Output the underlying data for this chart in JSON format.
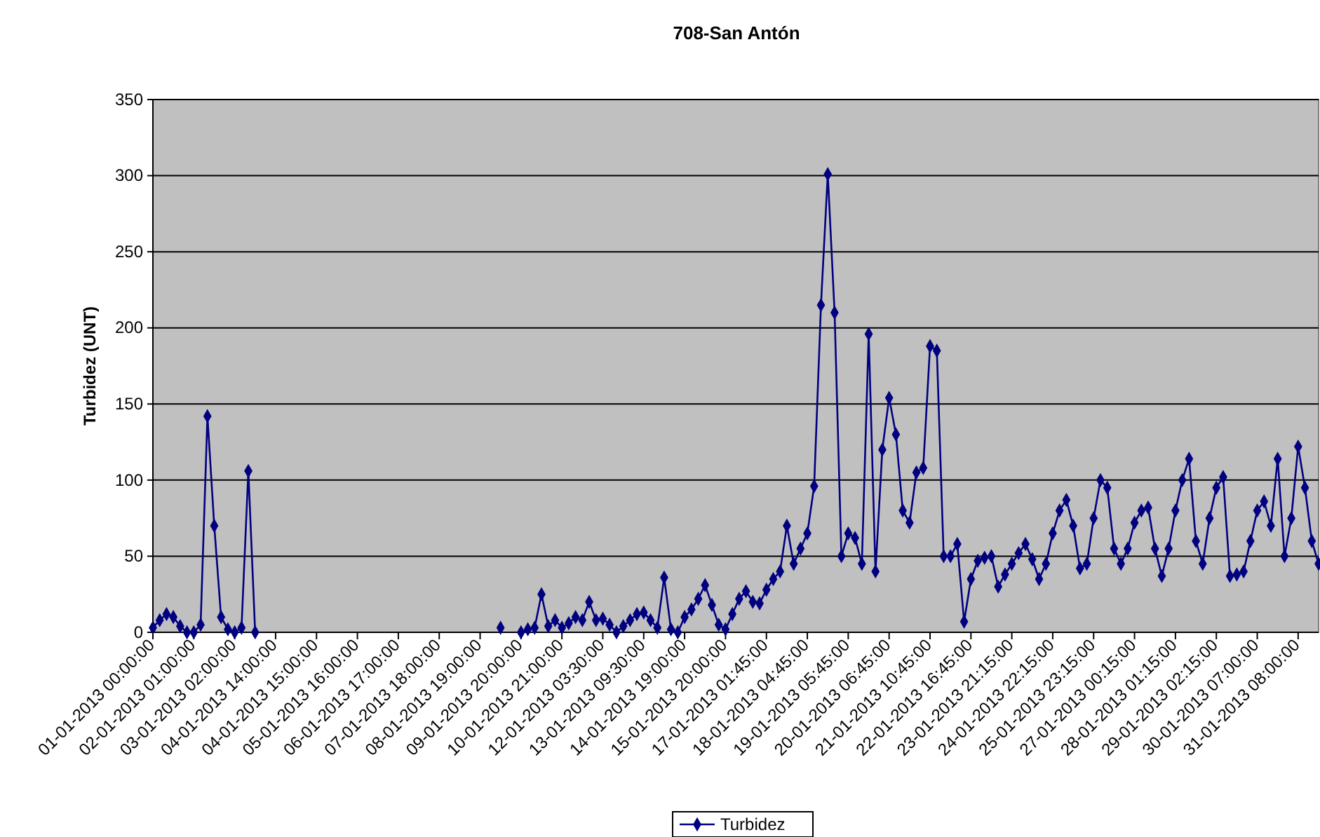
{
  "chart_data": {
    "type": "line",
    "title": "708-San Antón",
    "ylabel": "Turbidez (UNT)",
    "categories": [
      "01-01-2013 00:00:00",
      null,
      null,
      null,
      null,
      null,
      "02-01-2013 01:00:00",
      null,
      null,
      null,
      null,
      null,
      "03-01-2013 02:00:00",
      null,
      null,
      null,
      null,
      null,
      "04-01-2013 14:00:00",
      null,
      null,
      null,
      null,
      null,
      "04-01-2013 15:00:00",
      null,
      null,
      null,
      null,
      null,
      "05-01-2013 16:00:00",
      null,
      null,
      null,
      null,
      null,
      "06-01-2013 17:00:00",
      null,
      null,
      null,
      null,
      null,
      "07-01-2013 18:00:00",
      null,
      null,
      null,
      null,
      null,
      "08-01-2013 19:00:00",
      null,
      null,
      null,
      null,
      null,
      "09-01-2013 20:00:00",
      null,
      null,
      null,
      null,
      null,
      "10-01-2013 21:00:00",
      null,
      null,
      null,
      null,
      null,
      "12-01-2013 03:30:00",
      null,
      null,
      null,
      null,
      null,
      "13-01-2013 09:30:00",
      null,
      null,
      null,
      null,
      null,
      "14-01-2013 19:00:00",
      null,
      null,
      null,
      null,
      null,
      "15-01-2013 20:00:00",
      null,
      null,
      null,
      null,
      null,
      "17-01-2013 01:45:00",
      null,
      null,
      null,
      null,
      null,
      "18-01-2013 04:45:00",
      null,
      null,
      null,
      null,
      null,
      "19-01-2013 05:45:00",
      null,
      null,
      null,
      null,
      null,
      "20-01-2013 06:45:00",
      null,
      null,
      null,
      null,
      null,
      "21-01-2013 10:45:00",
      null,
      null,
      null,
      null,
      null,
      "22-01-2013 16:45:00",
      null,
      null,
      null,
      null,
      null,
      "23-01-2013 21:15:00",
      null,
      null,
      null,
      null,
      null,
      "24-01-2013 22:15:00",
      null,
      null,
      null,
      null,
      null,
      "25-01-2013 23:15:00",
      null,
      null,
      null,
      null,
      null,
      "27-01-2013 00:15:00",
      null,
      null,
      null,
      null,
      null,
      "28-01-2013 01:15:00",
      null,
      null,
      null,
      null,
      null,
      "29-01-2013 02:15:00",
      null,
      null,
      null,
      null,
      null,
      "30-01-2013 07:00:00",
      null,
      null,
      null,
      null,
      null,
      "31-01-2013 08:00:00",
      null,
      null,
      null
    ],
    "series": [
      {
        "name": "Turbidez",
        "color": "#000080",
        "values": [
          3,
          8,
          12,
          10,
          4,
          0,
          0,
          5,
          142,
          70,
          10,
          2,
          0,
          3,
          106,
          0,
          null,
          null,
          null,
          null,
          null,
          null,
          null,
          null,
          null,
          null,
          null,
          null,
          null,
          null,
          null,
          null,
          null,
          null,
          null,
          null,
          null,
          null,
          null,
          null,
          null,
          null,
          null,
          null,
          null,
          null,
          null,
          null,
          null,
          null,
          null,
          3,
          null,
          null,
          0,
          2,
          3,
          25,
          4,
          8,
          3,
          6,
          10,
          8,
          20,
          8,
          9,
          5,
          0,
          4,
          8,
          12,
          13,
          8,
          3,
          36,
          2,
          0,
          10,
          15,
          22,
          31,
          18,
          5,
          2,
          12,
          22,
          27,
          20,
          19,
          28,
          35,
          40,
          70,
          45,
          55,
          65,
          96,
          215,
          301,
          210,
          50,
          65,
          62,
          45,
          196,
          40,
          120,
          154,
          130,
          80,
          72,
          105,
          108,
          188,
          185,
          50,
          50,
          58,
          7,
          35,
          47,
          49,
          50,
          30,
          38,
          45,
          52,
          58,
          48,
          35,
          45,
          65,
          80,
          87,
          70,
          42,
          45,
          75,
          100,
          95,
          55,
          45,
          55,
          72,
          80,
          82,
          55,
          37,
          55,
          80,
          100,
          114,
          60,
          45,
          75,
          95,
          102,
          37,
          38,
          40,
          60,
          80,
          86,
          70,
          114,
          50,
          75,
          122,
          95,
          60,
          45
        ]
      }
    ],
    "ylim": [
      0,
      350
    ],
    "yticks": [
      0,
      50,
      100,
      150,
      200,
      250,
      300,
      350
    ],
    "grid": "y",
    "legend": "bottom",
    "marker": "diamond",
    "line_style": "solid"
  }
}
